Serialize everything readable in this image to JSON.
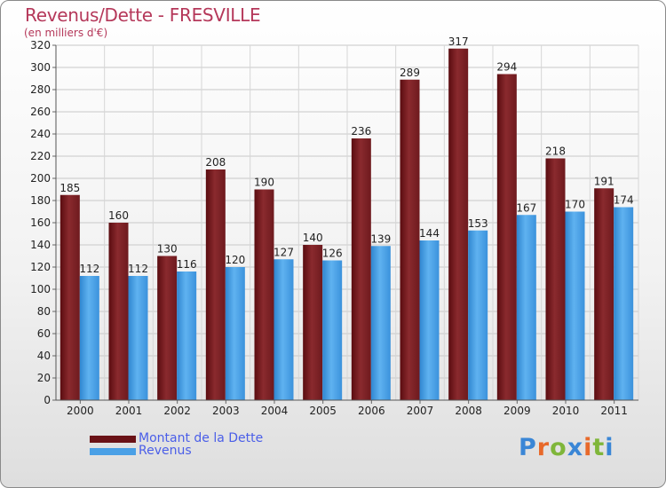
{
  "header": {
    "title": "Revenus/Dette - FRESVILLE",
    "subtitle": "(en milliers d'€)"
  },
  "logo": {
    "text": "Proxiti",
    "colors": [
      "#3a86d6",
      "#e8692a",
      "#7fb63a",
      "#3a86d6",
      "#e8692a",
      "#7fb63a",
      "#3a86d6"
    ]
  },
  "chart_data": {
    "type": "bar",
    "title": "Revenus/Dette - FRESVILLE",
    "ylabel": "(en milliers d'€)",
    "categories": [
      "2000",
      "2001",
      "2002",
      "2003",
      "2004",
      "2005",
      "2006",
      "2007",
      "2008",
      "2009",
      "2010",
      "2011"
    ],
    "series": [
      {
        "name": "Montant de la Dette",
        "color": "#7a1f24",
        "values": [
          185,
          160,
          130,
          208,
          190,
          140,
          236,
          289,
          317,
          294,
          218,
          191
        ]
      },
      {
        "name": "Revenus",
        "color": "#4aa0e6",
        "values": [
          112,
          112,
          116,
          120,
          127,
          126,
          139,
          144,
          153,
          167,
          170,
          174
        ]
      }
    ],
    "ylim": [
      0,
      320
    ],
    "yticks": [
      0,
      20,
      40,
      60,
      80,
      100,
      120,
      140,
      160,
      180,
      200,
      220,
      240,
      260,
      280,
      300,
      320
    ],
    "grid": true,
    "legend": "bottom-left",
    "data_labels": true
  }
}
